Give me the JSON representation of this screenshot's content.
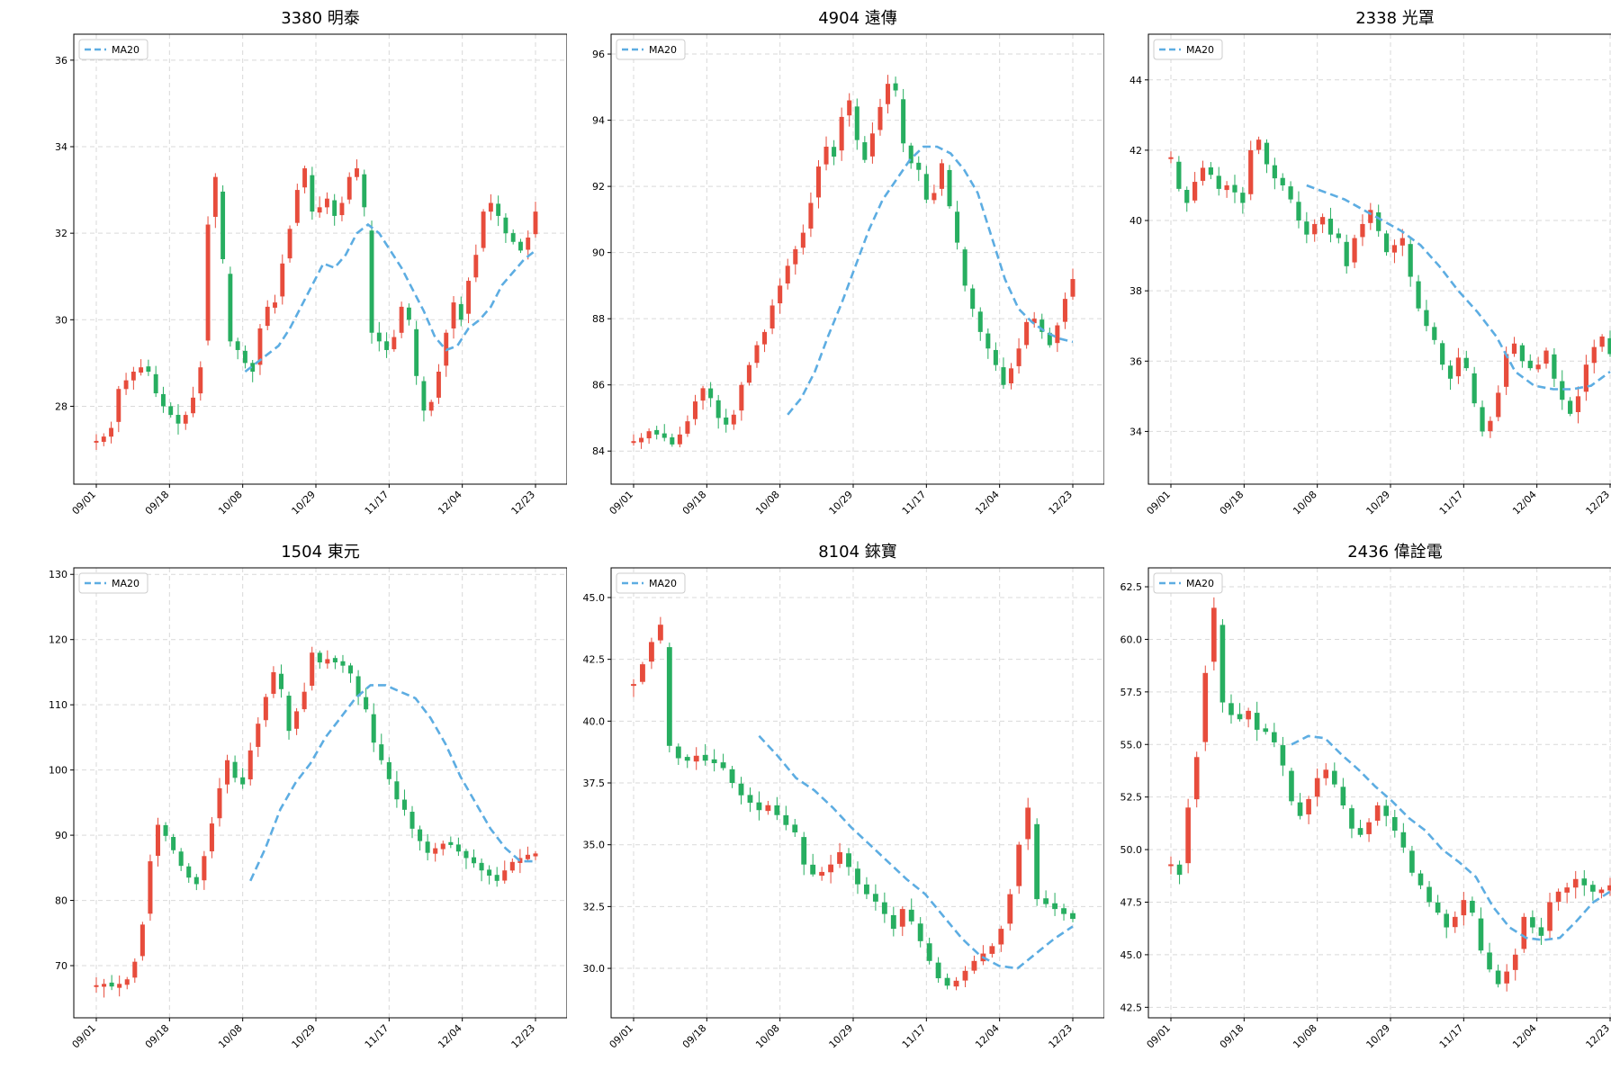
{
  "colors": {
    "up": "#e74c3c",
    "down": "#27ae60",
    "ma": "#5dade2"
  },
  "legend_label": "MA20",
  "x_tick_labels": [
    "09/01",
    "09/18",
    "10/08",
    "10/29",
    "11/17",
    "12/04",
    "12/23"
  ],
  "chart_data": [
    {
      "type": "candlestick",
      "title": "3380 明泰",
      "ylim": [
        26.2,
        36.6
      ],
      "yticks": [
        28,
        30,
        32,
        34,
        36
      ],
      "grid": true,
      "legend": "top-left",
      "series": [
        {
          "name": "MA20",
          "style": "dashed",
          "start": 20,
          "values": [
            28.8,
            29.0,
            29.2,
            29.4,
            29.8,
            30.3,
            30.8,
            31.3,
            31.2,
            31.5,
            32.0,
            32.2,
            32.0,
            31.6,
            31.2,
            30.7,
            30.2,
            29.6,
            29.3,
            29.4,
            29.8,
            30.0,
            30.3,
            30.8,
            31.1,
            31.4,
            31.6
          ]
        }
      ],
      "base": [
        27.2,
        27.3,
        27.5,
        28.4,
        28.6,
        28.8,
        28.9,
        28.8,
        28.3,
        28.0,
        27.8,
        27.6,
        27.8,
        28.2,
        28.9,
        32.2,
        33.3,
        31.4,
        29.5,
        29.3,
        29.0,
        28.8,
        29.8,
        30.3,
        30.4,
        31.3,
        32.1,
        33.0,
        33.5,
        32.5,
        32.6,
        32.8,
        32.4,
        32.7,
        33.3,
        33.5,
        32.6,
        29.7,
        29.5,
        29.3,
        29.6,
        30.3,
        30.0,
        28.7,
        27.9,
        28.1,
        28.8,
        29.7,
        30.4,
        30.0,
        30.9,
        31.5,
        32.5,
        32.7,
        32.4,
        32.0,
        31.8,
        31.6,
        31.9,
        32.5
      ]
    },
    {
      "type": "candlestick",
      "title": "4904 遠傳",
      "ylim": [
        83.0,
        96.6
      ],
      "yticks": [
        84,
        86,
        88,
        90,
        92,
        94,
        96
      ],
      "grid": true,
      "legend": "top-left",
      "series": [
        {
          "name": "MA20",
          "style": "dashed",
          "start": 20,
          "values": [
            85.1,
            85.6,
            86.4,
            87.5,
            88.5,
            89.6,
            90.7,
            91.6,
            92.2,
            92.8,
            93.2,
            93.2,
            93.0,
            92.5,
            91.8,
            90.5,
            89.2,
            88.3,
            87.9,
            87.6,
            87.4,
            87.3
          ]
        }
      ],
      "base": [
        84.3,
        84.4,
        84.6,
        84.5,
        84.4,
        84.2,
        84.5,
        84.9,
        85.5,
        85.9,
        85.6,
        85.0,
        84.8,
        85.1,
        86.0,
        86.6,
        87.2,
        87.6,
        88.4,
        89.0,
        89.6,
        90.1,
        90.6,
        91.5,
        92.6,
        93.2,
        92.9,
        94.1,
        94.6,
        93.4,
        92.8,
        93.6,
        94.4,
        95.1,
        94.9,
        93.3,
        92.7,
        92.5,
        91.6,
        91.8,
        92.7,
        91.4,
        90.3,
        89.0,
        88.3,
        87.6,
        87.1,
        86.6,
        86.0,
        86.5,
        87.1,
        87.9,
        88.0,
        87.6,
        87.2,
        87.8,
        88.6,
        89.2
      ]
    },
    {
      "type": "candlestick",
      "title": "2338 光罩",
      "ylim": [
        32.5,
        45.3
      ],
      "yticks": [
        34,
        36,
        38,
        40,
        42,
        44
      ],
      "grid": true,
      "legend": "top-left",
      "series": [
        {
          "name": "MA20",
          "style": "dashed",
          "start": 17,
          "values": [
            41.0,
            40.8,
            40.6,
            40.3,
            40.0,
            39.7,
            39.3,
            38.7,
            38.0,
            37.4,
            36.7,
            35.7,
            35.3,
            35.2,
            35.2,
            35.3,
            35.7
          ]
        }
      ],
      "base": [
        41.8,
        40.9,
        40.5,
        41.1,
        41.5,
        41.3,
        40.9,
        41.0,
        40.8,
        40.5,
        42.0,
        42.3,
        41.6,
        41.2,
        41.0,
        40.6,
        40.0,
        39.6,
        39.9,
        40.1,
        39.6,
        39.5,
        38.7,
        39.5,
        39.9,
        40.3,
        39.7,
        39.1,
        39.3,
        39.5,
        38.4,
        37.5,
        37.0,
        36.6,
        35.9,
        35.5,
        36.1,
        35.8,
        34.8,
        34.0,
        34.3,
        35.1,
        36.2,
        36.5,
        36.0,
        35.8,
        35.9,
        36.3,
        35.5,
        34.9,
        34.5,
        35.0,
        35.9,
        36.4,
        36.7,
        36.2
      ]
    },
    {
      "type": "candlestick",
      "title": "1504 東元",
      "ylim": [
        62,
        131
      ],
      "yticks": [
        70,
        80,
        90,
        100,
        110,
        120,
        130
      ],
      "grid": true,
      "legend": "top-left",
      "series": [
        {
          "name": "MA20",
          "style": "dashed",
          "start": 20,
          "values": [
            83,
            88,
            94,
            98,
            101,
            105,
            108,
            111,
            113,
            113,
            112,
            111,
            108,
            104,
            99,
            95,
            91,
            88,
            86,
            86
          ]
        }
      ],
      "base": [
        67.0,
        67.2,
        66.8,
        67.2,
        67.9,
        70.6,
        76.3,
        86.0,
        91.6,
        89.9,
        87.7,
        85.3,
        83.5,
        82.5,
        86.8,
        91.8,
        97.2,
        101.5,
        98.8,
        97.8,
        103.0,
        107.1,
        111.2,
        115.0,
        112.4,
        106.0,
        109.0,
        112.0,
        118.0,
        116.5,
        117.0,
        116.5,
        116.0,
        114.8,
        111.3,
        109.3,
        104.2,
        101.5,
        98.6,
        95.5,
        93.9,
        91.0,
        89.1,
        87.3,
        88.0,
        88.7,
        88.5,
        87.5,
        86.5,
        85.7,
        84.6,
        83.8,
        83.0,
        84.6,
        85.9,
        86.5,
        87.0,
        87.2
      ]
    },
    {
      "type": "candlestick",
      "title": "8104 錸寶",
      "ylim": [
        28.0,
        46.2
      ],
      "yticks": [
        30.0,
        32.5,
        35.0,
        37.5,
        40.0,
        42.5,
        45.0
      ],
      "grid": true,
      "legend": "top-left",
      "series": [
        {
          "name": "MA20",
          "style": "dashed",
          "start": 14,
          "values": [
            39.4,
            38.6,
            37.7,
            37.2,
            36.5,
            35.7,
            35.0,
            34.3,
            33.6,
            33.0,
            32.1,
            31.2,
            30.5,
            30.1,
            30.0,
            30.6,
            31.2,
            31.7
          ]
        }
      ],
      "base": [
        41.5,
        42.3,
        43.2,
        43.9,
        39.0,
        38.5,
        38.4,
        38.6,
        38.4,
        38.3,
        38.1,
        37.5,
        37.0,
        36.7,
        36.4,
        36.6,
        36.2,
        35.8,
        35.5,
        34.2,
        33.8,
        33.9,
        34.2,
        34.7,
        34.1,
        33.4,
        33.0,
        32.7,
        32.2,
        31.6,
        32.4,
        31.9,
        31.1,
        30.3,
        29.6,
        29.3,
        29.5,
        29.9,
        30.3,
        30.6,
        30.9,
        31.6,
        33.0,
        35.0,
        36.5,
        32.8,
        32.6,
        32.4,
        32.2,
        32.0
      ]
    },
    {
      "type": "candlestick",
      "title": "2436 偉詮電",
      "ylim": [
        42.0,
        63.4
      ],
      "yticks": [
        42.5,
        45.0,
        47.5,
        50.0,
        52.5,
        55.0,
        57.5,
        60.0,
        62.5
      ],
      "grid": true,
      "legend": "top-left",
      "series": [
        {
          "name": "MA20",
          "style": "dashed",
          "start": 14,
          "values": [
            55.0,
            55.4,
            55.3,
            54.5,
            53.8,
            53.0,
            52.3,
            51.5,
            50.9,
            50.0,
            49.4,
            48.7,
            47.3,
            46.3,
            45.8,
            45.7,
            45.8,
            46.6,
            47.5,
            48.0
          ]
        }
      ],
      "base": [
        49.3,
        48.8,
        52.0,
        54.4,
        58.4,
        61.5,
        57.0,
        56.4,
        56.2,
        56.6,
        55.7,
        55.6,
        55.1,
        54.0,
        52.3,
        51.6,
        52.4,
        53.4,
        53.8,
        53.1,
        52.1,
        51.0,
        50.7,
        51.3,
        52.1,
        51.6,
        50.9,
        50.1,
        48.9,
        48.3,
        47.5,
        47.0,
        46.3,
        46.8,
        47.6,
        47.0,
        45.2,
        44.3,
        43.6,
        44.2,
        45.0,
        46.8,
        46.3,
        45.9,
        47.5,
        48.0,
        48.2,
        48.6,
        48.3,
        48.0,
        48.1,
        48.3
      ]
    }
  ]
}
